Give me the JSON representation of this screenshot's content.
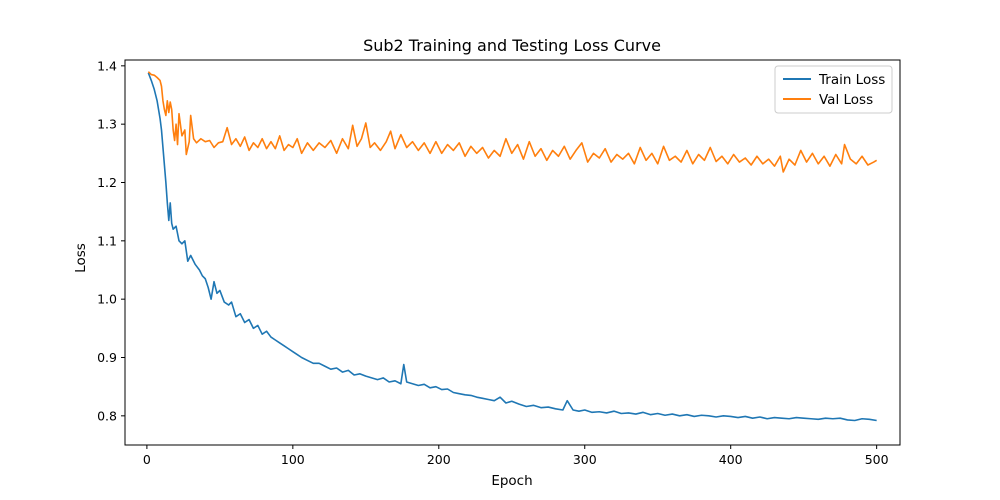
{
  "chart_data": {
    "type": "line",
    "title": "Sub2 Training and Testing Loss Curve",
    "xlabel": "Epoch",
    "ylabel": "Loss",
    "xlim": [
      -15,
      516
    ],
    "ylim": [
      0.75,
      1.41
    ],
    "xticks": [
      0,
      100,
      200,
      300,
      400,
      500
    ],
    "yticks": [
      0.8,
      0.9,
      1.0,
      1.1,
      1.2,
      1.3,
      1.4
    ],
    "ytick_labels": [
      "0.8",
      "0.9",
      "1.0",
      "1.1",
      "1.2",
      "1.3",
      "1.4"
    ],
    "grid": false,
    "legend_position": "top-right",
    "series": [
      {
        "name": "Train Loss",
        "color": "#1f77b4",
        "points": [
          [
            1,
            1.388
          ],
          [
            3,
            1.375
          ],
          [
            5,
            1.36
          ],
          [
            7,
            1.34
          ],
          [
            9,
            1.31
          ],
          [
            10,
            1.29
          ],
          [
            11,
            1.26
          ],
          [
            12,
            1.23
          ],
          [
            13,
            1.2
          ],
          [
            14,
            1.165
          ],
          [
            15,
            1.135
          ],
          [
            16,
            1.165
          ],
          [
            17,
            1.13
          ],
          [
            18,
            1.12
          ],
          [
            20,
            1.125
          ],
          [
            22,
            1.1
          ],
          [
            24,
            1.095
          ],
          [
            26,
            1.1
          ],
          [
            28,
            1.065
          ],
          [
            30,
            1.075
          ],
          [
            33,
            1.06
          ],
          [
            36,
            1.05
          ],
          [
            38,
            1.04
          ],
          [
            40,
            1.035
          ],
          [
            42,
            1.02
          ],
          [
            44,
            1.0
          ],
          [
            46,
            1.03
          ],
          [
            48,
            1.01
          ],
          [
            50,
            1.015
          ],
          [
            53,
            0.995
          ],
          [
            56,
            0.99
          ],
          [
            58,
            0.995
          ],
          [
            61,
            0.97
          ],
          [
            64,
            0.975
          ],
          [
            67,
            0.96
          ],
          [
            70,
            0.965
          ],
          [
            73,
            0.95
          ],
          [
            76,
            0.955
          ],
          [
            79,
            0.94
          ],
          [
            82,
            0.945
          ],
          [
            85,
            0.935
          ],
          [
            88,
            0.93
          ],
          [
            91,
            0.925
          ],
          [
            94,
            0.92
          ],
          [
            97,
            0.915
          ],
          [
            100,
            0.91
          ],
          [
            103,
            0.905
          ],
          [
            106,
            0.9
          ],
          [
            110,
            0.895
          ],
          [
            114,
            0.89
          ],
          [
            118,
            0.89
          ],
          [
            122,
            0.885
          ],
          [
            126,
            0.88
          ],
          [
            130,
            0.882
          ],
          [
            134,
            0.875
          ],
          [
            138,
            0.878
          ],
          [
            142,
            0.87
          ],
          [
            146,
            0.872
          ],
          [
            150,
            0.868
          ],
          [
            154,
            0.865
          ],
          [
            158,
            0.862
          ],
          [
            162,
            0.865
          ],
          [
            166,
            0.858
          ],
          [
            170,
            0.86
          ],
          [
            174,
            0.855
          ],
          [
            176,
            0.888
          ],
          [
            178,
            0.858
          ],
          [
            182,
            0.855
          ],
          [
            186,
            0.852
          ],
          [
            190,
            0.854
          ],
          [
            194,
            0.848
          ],
          [
            198,
            0.85
          ],
          [
            202,
            0.845
          ],
          [
            206,
            0.846
          ],
          [
            210,
            0.84
          ],
          [
            214,
            0.838
          ],
          [
            218,
            0.836
          ],
          [
            222,
            0.835
          ],
          [
            226,
            0.832
          ],
          [
            230,
            0.83
          ],
          [
            234,
            0.828
          ],
          [
            238,
            0.826
          ],
          [
            242,
            0.832
          ],
          [
            246,
            0.822
          ],
          [
            250,
            0.825
          ],
          [
            255,
            0.82
          ],
          [
            260,
            0.816
          ],
          [
            265,
            0.818
          ],
          [
            270,
            0.814
          ],
          [
            275,
            0.815
          ],
          [
            280,
            0.812
          ],
          [
            285,
            0.81
          ],
          [
            288,
            0.826
          ],
          [
            292,
            0.81
          ],
          [
            296,
            0.808
          ],
          [
            300,
            0.81
          ],
          [
            305,
            0.806
          ],
          [
            310,
            0.807
          ],
          [
            315,
            0.805
          ],
          [
            320,
            0.808
          ],
          [
            325,
            0.804
          ],
          [
            330,
            0.805
          ],
          [
            335,
            0.803
          ],
          [
            340,
            0.806
          ],
          [
            345,
            0.802
          ],
          [
            350,
            0.804
          ],
          [
            355,
            0.801
          ],
          [
            360,
            0.803
          ],
          [
            365,
            0.8
          ],
          [
            370,
            0.802
          ],
          [
            375,
            0.799
          ],
          [
            380,
            0.801
          ],
          [
            385,
            0.8
          ],
          [
            390,
            0.798
          ],
          [
            395,
            0.8
          ],
          [
            400,
            0.799
          ],
          [
            405,
            0.797
          ],
          [
            410,
            0.799
          ],
          [
            415,
            0.796
          ],
          [
            420,
            0.798
          ],
          [
            425,
            0.795
          ],
          [
            430,
            0.797
          ],
          [
            435,
            0.796
          ],
          [
            440,
            0.795
          ],
          [
            445,
            0.797
          ],
          [
            450,
            0.796
          ],
          [
            455,
            0.795
          ],
          [
            460,
            0.794
          ],
          [
            465,
            0.796
          ],
          [
            470,
            0.795
          ],
          [
            475,
            0.796
          ],
          [
            480,
            0.793
          ],
          [
            485,
            0.792
          ],
          [
            490,
            0.795
          ],
          [
            495,
            0.794
          ],
          [
            500,
            0.792
          ]
        ]
      },
      {
        "name": "Val Loss",
        "color": "#ff7f0e",
        "points": [
          [
            1,
            1.39
          ],
          [
            3,
            1.385
          ],
          [
            5,
            1.384
          ],
          [
            7,
            1.38
          ],
          [
            9,
            1.375
          ],
          [
            10,
            1.365
          ],
          [
            11,
            1.34
          ],
          [
            12,
            1.325
          ],
          [
            13,
            1.315
          ],
          [
            14,
            1.34
          ],
          [
            15,
            1.32
          ],
          [
            16,
            1.338
          ],
          [
            17,
            1.325
          ],
          [
            18,
            1.29
          ],
          [
            19,
            1.272
          ],
          [
            20,
            1.3
          ],
          [
            21,
            1.265
          ],
          [
            22,
            1.318
          ],
          [
            24,
            1.28
          ],
          [
            26,
            1.29
          ],
          [
            27,
            1.248
          ],
          [
            29,
            1.27
          ],
          [
            30,
            1.315
          ],
          [
            32,
            1.275
          ],
          [
            34,
            1.268
          ],
          [
            37,
            1.275
          ],
          [
            40,
            1.27
          ],
          [
            43,
            1.272
          ],
          [
            46,
            1.26
          ],
          [
            49,
            1.268
          ],
          [
            52,
            1.27
          ],
          [
            55,
            1.294
          ],
          [
            58,
            1.265
          ],
          [
            61,
            1.275
          ],
          [
            64,
            1.262
          ],
          [
            67,
            1.278
          ],
          [
            70,
            1.255
          ],
          [
            73,
            1.268
          ],
          [
            76,
            1.26
          ],
          [
            79,
            1.275
          ],
          [
            82,
            1.258
          ],
          [
            85,
            1.27
          ],
          [
            88,
            1.258
          ],
          [
            91,
            1.28
          ],
          [
            94,
            1.255
          ],
          [
            97,
            1.265
          ],
          [
            100,
            1.26
          ],
          [
            103,
            1.275
          ],
          [
            106,
            1.25
          ],
          [
            110,
            1.268
          ],
          [
            114,
            1.255
          ],
          [
            118,
            1.268
          ],
          [
            122,
            1.26
          ],
          [
            126,
            1.272
          ],
          [
            130,
            1.25
          ],
          [
            134,
            1.275
          ],
          [
            138,
            1.258
          ],
          [
            141,
            1.298
          ],
          [
            144,
            1.262
          ],
          [
            147,
            1.275
          ],
          [
            150,
            1.302
          ],
          [
            153,
            1.26
          ],
          [
            156,
            1.268
          ],
          [
            160,
            1.255
          ],
          [
            164,
            1.27
          ],
          [
            167,
            1.288
          ],
          [
            170,
            1.258
          ],
          [
            174,
            1.282
          ],
          [
            178,
            1.26
          ],
          [
            182,
            1.27
          ],
          [
            186,
            1.255
          ],
          [
            190,
            1.268
          ],
          [
            194,
            1.25
          ],
          [
            198,
            1.27
          ],
          [
            202,
            1.25
          ],
          [
            206,
            1.265
          ],
          [
            210,
            1.255
          ],
          [
            214,
            1.268
          ],
          [
            218,
            1.245
          ],
          [
            222,
            1.262
          ],
          [
            226,
            1.25
          ],
          [
            230,
            1.26
          ],
          [
            234,
            1.242
          ],
          [
            238,
            1.255
          ],
          [
            242,
            1.245
          ],
          [
            246,
            1.275
          ],
          [
            250,
            1.25
          ],
          [
            254,
            1.265
          ],
          [
            258,
            1.24
          ],
          [
            262,
            1.27
          ],
          [
            266,
            1.245
          ],
          [
            270,
            1.258
          ],
          [
            274,
            1.238
          ],
          [
            278,
            1.255
          ],
          [
            282,
            1.245
          ],
          [
            286,
            1.262
          ],
          [
            290,
            1.24
          ],
          [
            294,
            1.255
          ],
          [
            298,
            1.268
          ],
          [
            302,
            1.235
          ],
          [
            306,
            1.25
          ],
          [
            310,
            1.242
          ],
          [
            314,
            1.258
          ],
          [
            318,
            1.235
          ],
          [
            322,
            1.248
          ],
          [
            326,
            1.24
          ],
          [
            330,
            1.25
          ],
          [
            334,
            1.232
          ],
          [
            338,
            1.26
          ],
          [
            342,
            1.238
          ],
          [
            346,
            1.25
          ],
          [
            350,
            1.232
          ],
          [
            354,
            1.262
          ],
          [
            358,
            1.238
          ],
          [
            362,
            1.245
          ],
          [
            366,
            1.235
          ],
          [
            370,
            1.255
          ],
          [
            374,
            1.232
          ],
          [
            378,
            1.248
          ],
          [
            382,
            1.238
          ],
          [
            386,
            1.26
          ],
          [
            390,
            1.236
          ],
          [
            394,
            1.245
          ],
          [
            398,
            1.232
          ],
          [
            402,
            1.248
          ],
          [
            406,
            1.235
          ],
          [
            410,
            1.242
          ],
          [
            414,
            1.23
          ],
          [
            418,
            1.245
          ],
          [
            422,
            1.232
          ],
          [
            426,
            1.24
          ],
          [
            430,
            1.228
          ],
          [
            434,
            1.245
          ],
          [
            436,
            1.218
          ],
          [
            440,
            1.24
          ],
          [
            444,
            1.23
          ],
          [
            448,
            1.255
          ],
          [
            452,
            1.235
          ],
          [
            456,
            1.25
          ],
          [
            460,
            1.232
          ],
          [
            464,
            1.245
          ],
          [
            468,
            1.228
          ],
          [
            472,
            1.248
          ],
          [
            476,
            1.232
          ],
          [
            478,
            1.265
          ],
          [
            482,
            1.24
          ],
          [
            486,
            1.232
          ],
          [
            490,
            1.245
          ],
          [
            494,
            1.23
          ],
          [
            498,
            1.235
          ],
          [
            500,
            1.238
          ]
        ]
      }
    ]
  }
}
